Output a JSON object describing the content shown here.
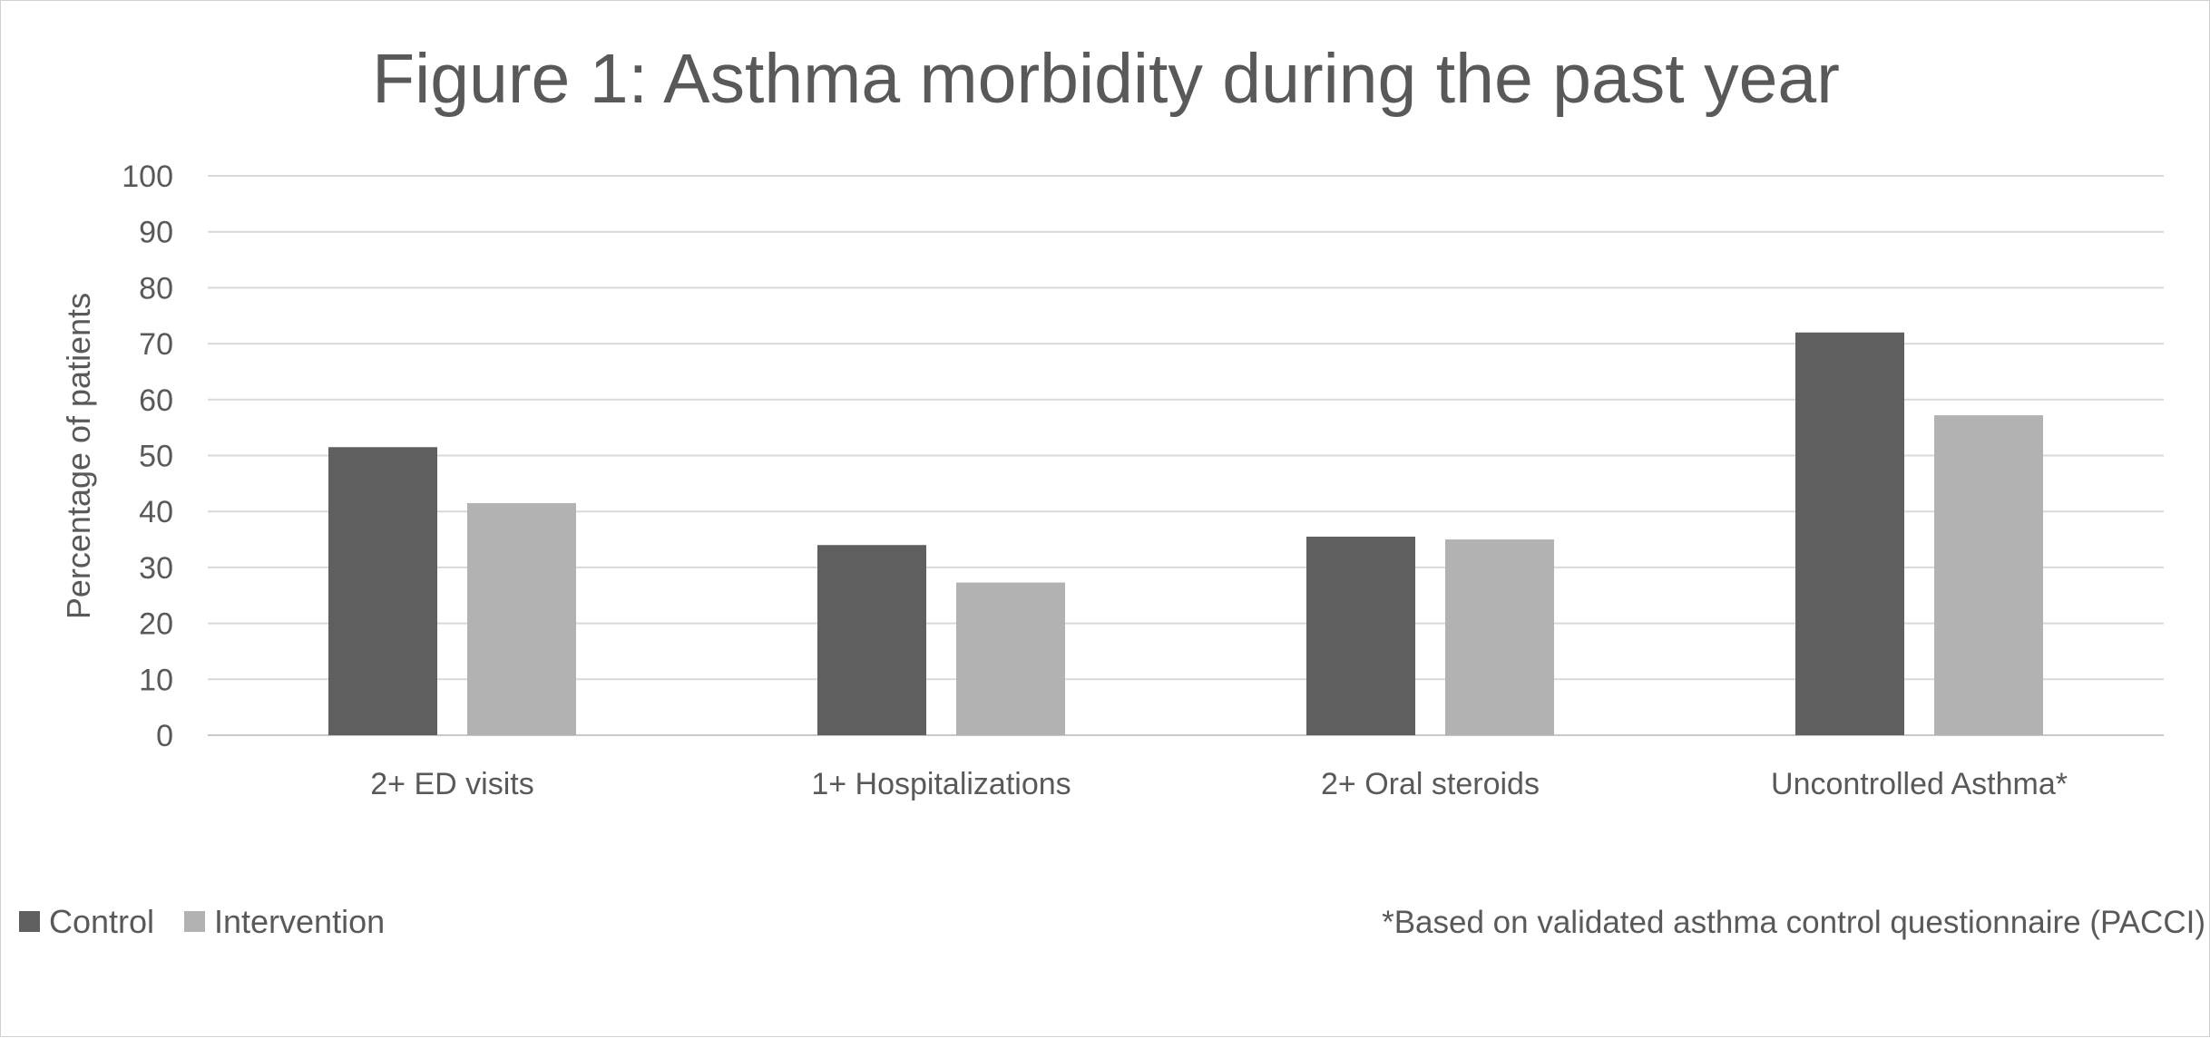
{
  "chart_data": {
    "type": "bar",
    "title": "Figure 1: Asthma morbidity during the past year",
    "xlabel": "",
    "ylabel": "Percentage of patients",
    "ylim": [
      0,
      100
    ],
    "yticks": [
      0,
      10,
      20,
      30,
      40,
      50,
      60,
      70,
      80,
      90,
      100
    ],
    "categories": [
      "2+ ED visits",
      "1+ Hospitalizations",
      "2+ Oral steroids",
      "Uncontrolled Asthma*"
    ],
    "series": [
      {
        "name": "Control",
        "color": "#5f5f5f",
        "values": [
          51.5,
          34,
          35.5,
          72
        ]
      },
      {
        "name": "Intervention",
        "color": "#b2b2b2",
        "values": [
          41.5,
          27.3,
          35,
          57.2
        ]
      }
    ],
    "grid": true,
    "legend_position": "bottom-left",
    "footnote": "*Based on validated asthma control questionnaire (PACCI)"
  }
}
